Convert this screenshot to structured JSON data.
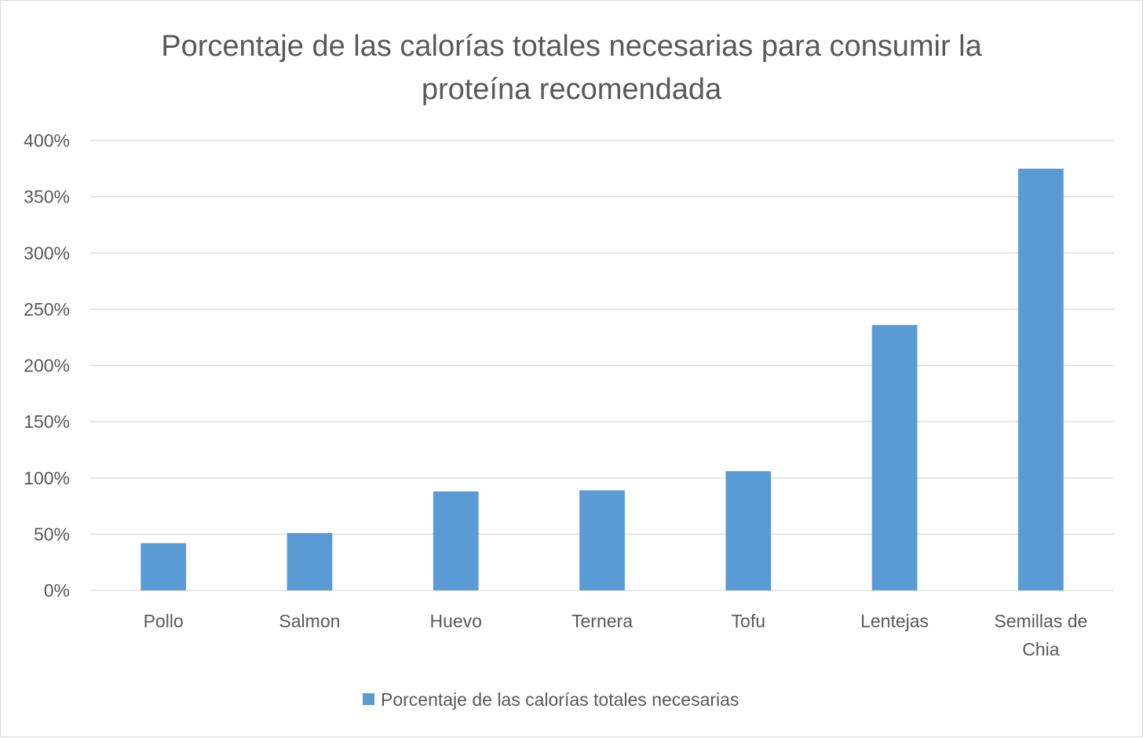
{
  "chart_data": {
    "type": "bar",
    "title_lines": [
      "Porcentaje de las calorías totales necesarias para consumir la",
      "proteína recomendada"
    ],
    "categories": [
      [
        "Pollo"
      ],
      [
        "Salmon"
      ],
      [
        "Huevo"
      ],
      [
        "Ternera"
      ],
      [
        "Tofu"
      ],
      [
        "Lentejas"
      ],
      [
        "Semillas de",
        "Chia"
      ]
    ],
    "series": [
      {
        "name": "Porcentaje de las calorías totales necesarias",
        "color": "#5b9bd5",
        "values": [
          42,
          51,
          88,
          89,
          106,
          236,
          375
        ]
      }
    ],
    "ylim": [
      0,
      400
    ],
    "yticks": [
      0,
      50,
      100,
      150,
      200,
      250,
      300,
      350,
      400
    ],
    "ytick_format": "percent",
    "grid": true,
    "legend": "bottom"
  }
}
